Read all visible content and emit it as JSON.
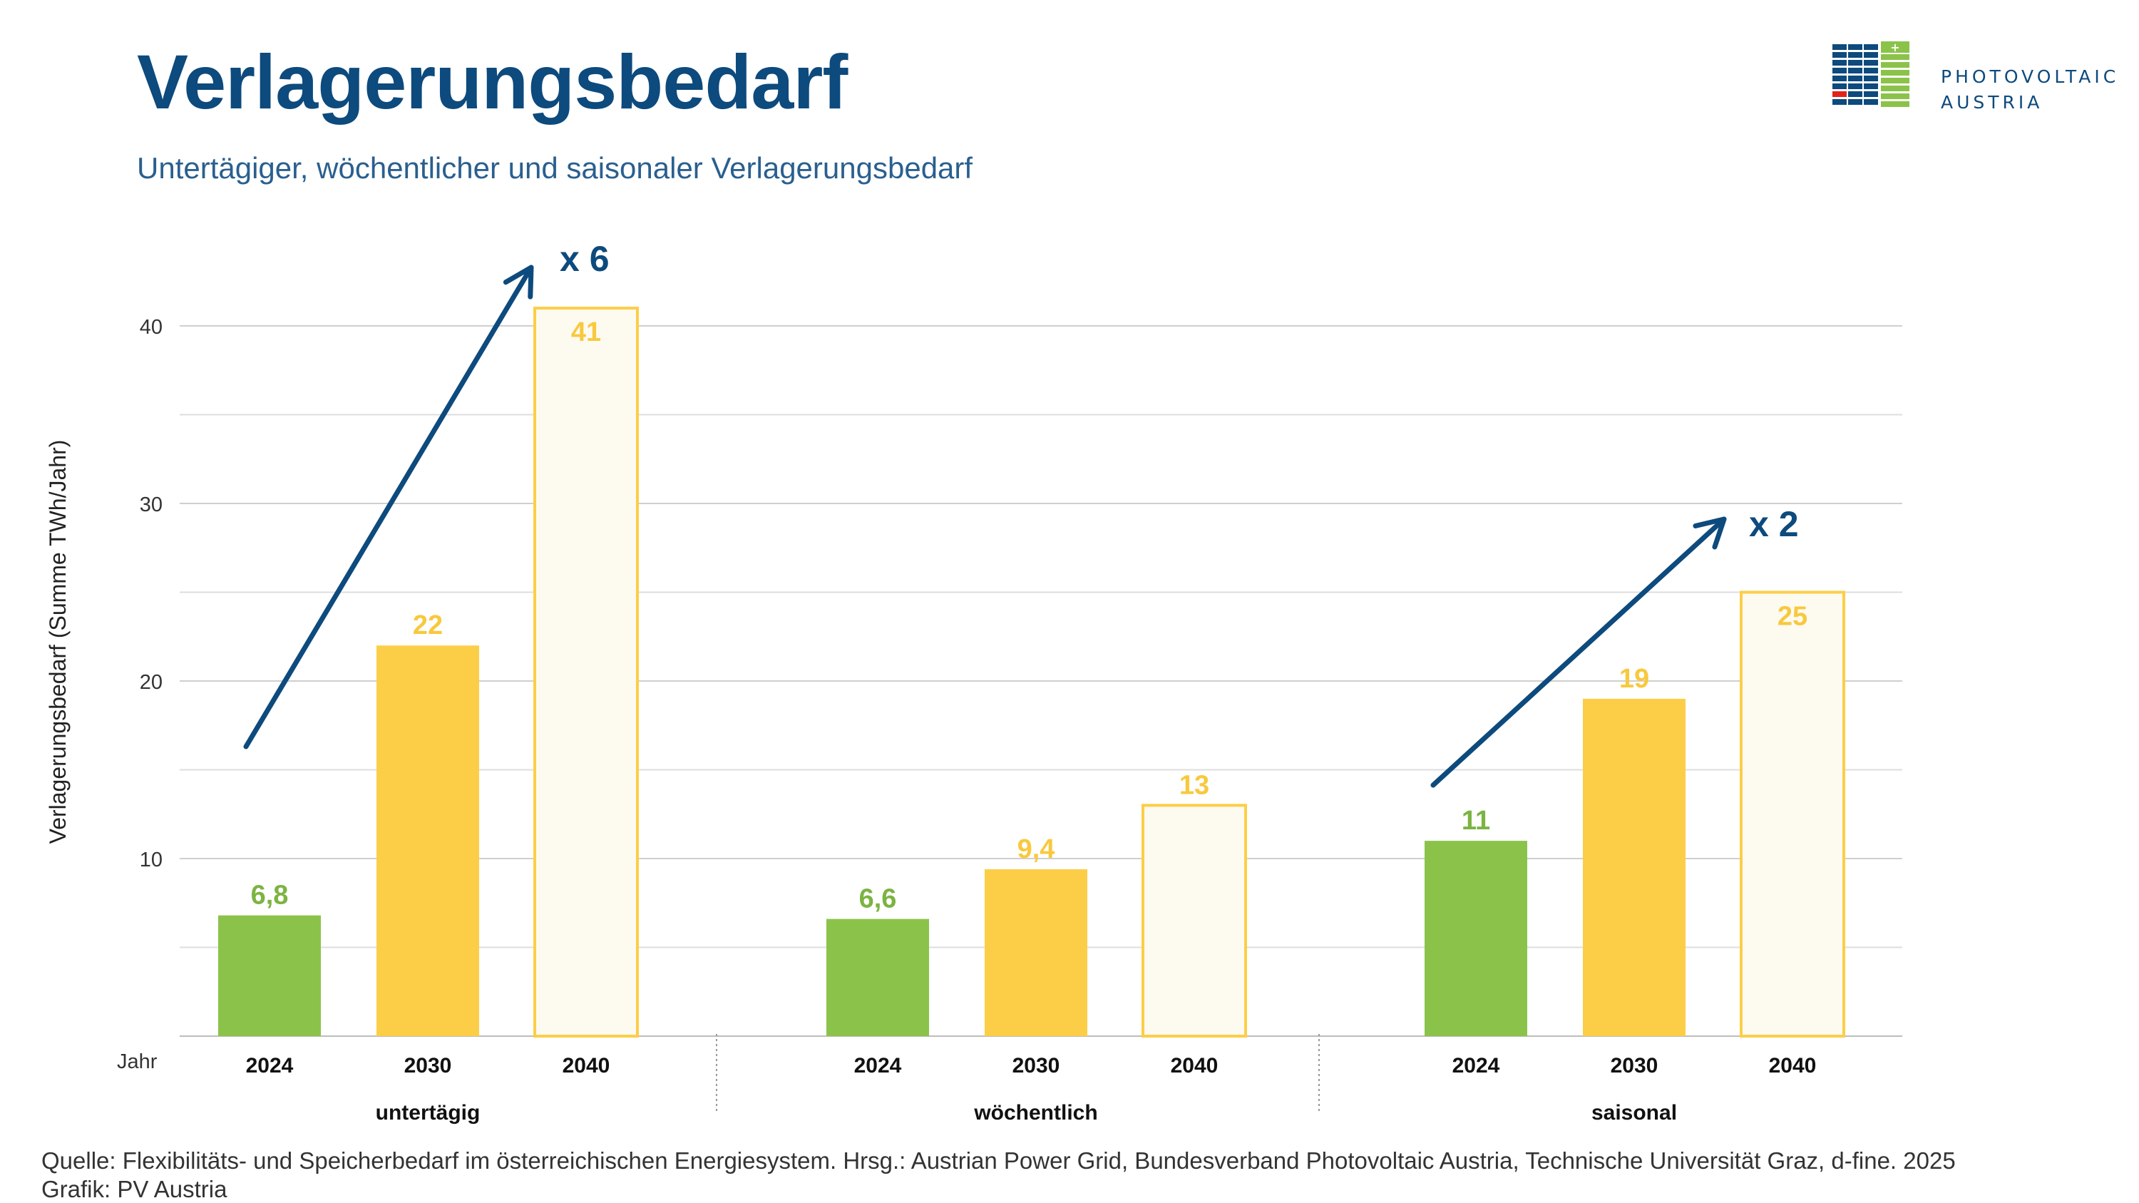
{
  "header": {
    "title": "Verlagerungsbedarf",
    "subtitle": "Untertägiger, wöchentlicher und saisonaler Verlagerungsbedarf"
  },
  "logo": {
    "line1": "PHOTOVOLTAIC",
    "line2": "AUSTRIA",
    "colors": {
      "blue": "#0d4a7d",
      "green": "#8bc34a",
      "red": "#e2231a"
    }
  },
  "chart_data": {
    "type": "bar",
    "ylabel": "Verlagerungsbedarf (Summe TWh/Jahr)",
    "xlabel_prefix": "Jahr",
    "ylim": [
      0,
      40
    ],
    "yticks": [
      10,
      20,
      30,
      40
    ],
    "grid": true,
    "groups": [
      {
        "name": "untertägig",
        "bars": [
          {
            "year": "2024",
            "value": 6.8,
            "label": "6,8",
            "style": "green"
          },
          {
            "year": "2030",
            "value": 22,
            "label": "22",
            "style": "yellow"
          },
          {
            "year": "2040",
            "value": 41,
            "label": "41",
            "style": "outline"
          }
        ]
      },
      {
        "name": "wöchentlich",
        "bars": [
          {
            "year": "2024",
            "value": 6.6,
            "label": "6,6",
            "style": "green"
          },
          {
            "year": "2030",
            "value": 9.4,
            "label": "9,4",
            "style": "yellow"
          },
          {
            "year": "2040",
            "value": 13,
            "label": "13",
            "style": "outline"
          }
        ]
      },
      {
        "name": "saisonal",
        "bars": [
          {
            "year": "2024",
            "value": 11,
            "label": "11",
            "style": "green"
          },
          {
            "year": "2030",
            "value": 19,
            "label": "19",
            "style": "yellow"
          },
          {
            "year": "2040",
            "value": 25,
            "label": "25",
            "style": "outline"
          }
        ]
      }
    ],
    "annotations": [
      {
        "group": "untertägig",
        "text": "x 6"
      },
      {
        "group": "saisonal",
        "text": "x 2"
      }
    ],
    "colors": {
      "green": "#8bc34a",
      "yellow": "#fcce48",
      "outline_stroke": "#fcce48",
      "outline_fill": "#fdfaf0",
      "label_green": "#7cb342",
      "label_yellow": "#f8c93e",
      "arrow": "#0d4a7d"
    }
  },
  "footer": {
    "source": "Quelle: Flexibilitäts- und Speicherbedarf im österreichischen Energiesystem. Hrsg.: Austrian Power Grid, Bundesverband Photovoltaic Austria, Technische Universität Graz, d-fine. 2025",
    "credit": "Grafik: PV Austria"
  }
}
